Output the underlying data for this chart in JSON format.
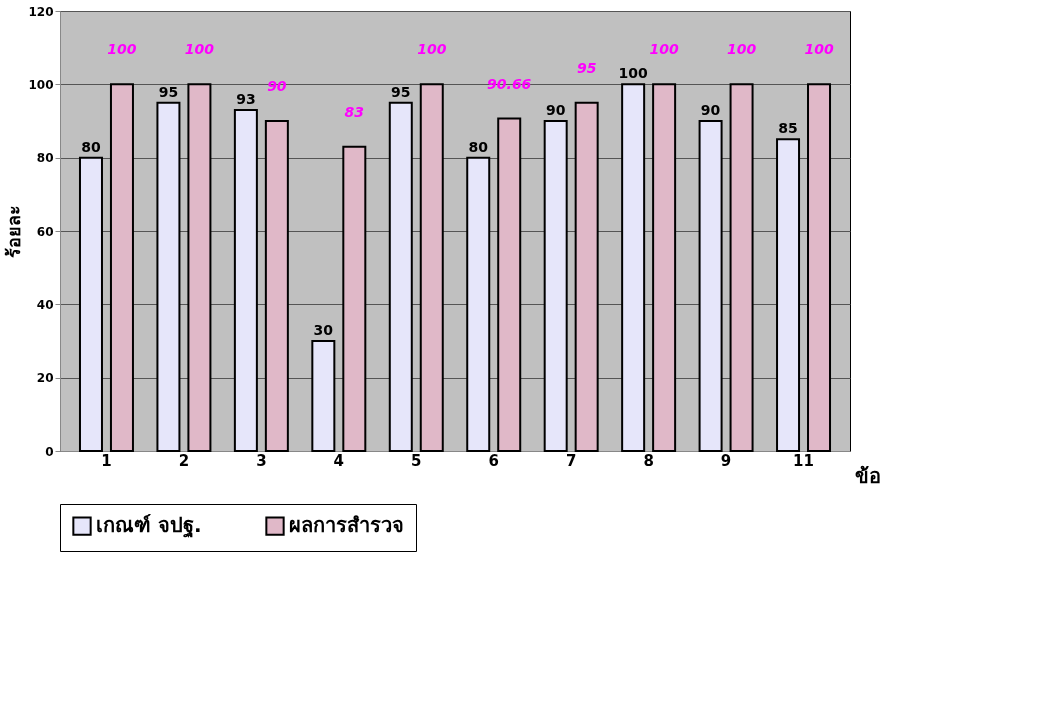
{
  "chart_data": {
    "type": "bar",
    "xlabel": "ข้อ",
    "ylabel": "ร้อยละ",
    "categories": [
      "1",
      "2",
      "3",
      "4",
      "5",
      "6",
      "7",
      "8",
      "9",
      "11"
    ],
    "series": [
      {
        "name": "เกณฑ์ จปฐ.",
        "color": "#e6e6fa",
        "values": [
          80,
          95,
          93,
          30,
          95,
          80,
          90,
          100,
          90,
          85
        ]
      },
      {
        "name": "ผลการสำรวจ",
        "color": "#e0b8c8",
        "values": [
          100,
          100,
          90,
          83,
          100,
          90.66,
          95,
          100,
          100,
          100
        ]
      }
    ],
    "ylim": [
      0,
      120
    ],
    "yticks": [
      0,
      20,
      40,
      60,
      80,
      100,
      120
    ],
    "grid": "y",
    "legend": "bottom",
    "data_labels": true
  }
}
